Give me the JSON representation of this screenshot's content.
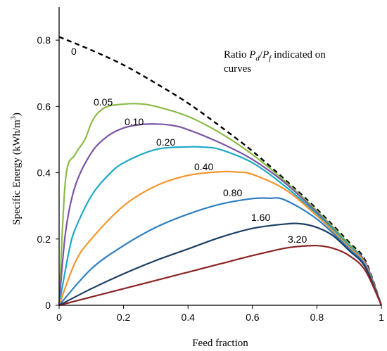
{
  "chart_data": {
    "type": "line",
    "xlabel": "Feed fraction",
    "ylabel_main": "Specific  Energy  (kWh/m",
    "ylabel_sup": "3",
    "ylabel_close": ")",
    "xlim": [
      0,
      1
    ],
    "ylim": [
      0,
      0.9
    ],
    "x_ticks": [
      0,
      0.2,
      0.4,
      0.6,
      0.8,
      1
    ],
    "x_tick_labels": [
      "0",
      "0.2",
      "0.4",
      "0.6",
      "0.8",
      "1"
    ],
    "y_ticks": [
      0,
      0.2,
      0.4,
      0.6,
      0.8
    ],
    "y_tick_labels": [
      "0",
      "0.2",
      "0.4",
      "0.6",
      "0.8"
    ],
    "grid": false,
    "annotation": {
      "prefix": "Ratio ",
      "p1": "P",
      "s1": "d",
      "slash": "/",
      "p2": "P",
      "s2": "f",
      "suffix": " indicated on",
      "line2": "curves"
    },
    "series": [
      {
        "name": "0",
        "label": "0",
        "color": "#000000",
        "dash": true,
        "x": [
          0,
          0.1,
          0.2,
          0.3,
          0.4,
          0.5,
          0.6,
          0.7,
          0.8,
          0.9,
          0.95,
          1.0
        ],
        "y": [
          0.81,
          0.77,
          0.725,
          0.67,
          0.61,
          0.54,
          0.465,
          0.38,
          0.29,
          0.19,
          0.135,
          0.0
        ]
      },
      {
        "name": "0.05",
        "label": "0.05",
        "color": "#8dbb4a",
        "dash": false,
        "x": [
          0,
          0.02,
          0.05,
          0.08,
          0.1,
          0.12,
          0.15,
          0.2,
          0.25,
          0.3,
          0.4,
          0.5,
          0.6,
          0.7,
          0.8,
          0.9,
          0.95,
          1.0
        ],
        "y": [
          0,
          0.38,
          0.455,
          0.5,
          0.55,
          0.58,
          0.6,
          0.607,
          0.608,
          0.6,
          0.57,
          0.52,
          0.455,
          0.375,
          0.285,
          0.185,
          0.13,
          0.0
        ]
      },
      {
        "name": "0.10",
        "label": "0.10",
        "color": "#7b56a6",
        "dash": false,
        "x": [
          0,
          0.02,
          0.05,
          0.1,
          0.15,
          0.2,
          0.25,
          0.3,
          0.35,
          0.4,
          0.5,
          0.6,
          0.7,
          0.8,
          0.9,
          0.95,
          1.0
        ],
        "y": [
          0,
          0.22,
          0.36,
          0.46,
          0.51,
          0.535,
          0.545,
          0.547,
          0.543,
          0.53,
          0.49,
          0.44,
          0.37,
          0.28,
          0.18,
          0.13,
          0.0
        ]
      },
      {
        "name": "0.20",
        "label": "0.20",
        "color": "#1da9c5",
        "dash": false,
        "x": [
          0,
          0.03,
          0.05,
          0.1,
          0.15,
          0.2,
          0.3,
          0.4,
          0.45,
          0.5,
          0.6,
          0.7,
          0.8,
          0.9,
          0.95,
          1.0
        ],
        "y": [
          0,
          0.16,
          0.23,
          0.33,
          0.39,
          0.43,
          0.47,
          0.478,
          0.477,
          0.47,
          0.43,
          0.36,
          0.275,
          0.18,
          0.125,
          0.0
        ]
      },
      {
        "name": "0.40",
        "label": "0.40",
        "color": "#f4962e",
        "dash": false,
        "x": [
          0,
          0.05,
          0.1,
          0.2,
          0.3,
          0.4,
          0.5,
          0.55,
          0.6,
          0.7,
          0.8,
          0.9,
          0.95,
          1.0
        ],
        "y": [
          0,
          0.13,
          0.2,
          0.3,
          0.36,
          0.392,
          0.403,
          0.402,
          0.395,
          0.35,
          0.27,
          0.175,
          0.125,
          0.0
        ]
      },
      {
        "name": "0.80",
        "label": "0.80",
        "color": "#2e7fc1",
        "dash": false,
        "x": [
          0,
          0.1,
          0.2,
          0.3,
          0.4,
          0.5,
          0.6,
          0.65,
          0.7,
          0.8,
          0.9,
          0.95,
          1.0
        ],
        "y": [
          0,
          0.11,
          0.18,
          0.235,
          0.275,
          0.305,
          0.322,
          0.323,
          0.318,
          0.26,
          0.17,
          0.12,
          0.0
        ]
      },
      {
        "name": "1.60",
        "label": "1.60",
        "color": "#1c3f65",
        "dash": false,
        "x": [
          0,
          0.1,
          0.2,
          0.3,
          0.4,
          0.5,
          0.6,
          0.7,
          0.75,
          0.8,
          0.85,
          0.9,
          0.95,
          1.0
        ],
        "y": [
          0,
          0.05,
          0.095,
          0.135,
          0.17,
          0.205,
          0.232,
          0.245,
          0.246,
          0.235,
          0.21,
          0.165,
          0.115,
          0.0
        ]
      },
      {
        "name": "3.20",
        "label": "3.20",
        "color": "#8b2424",
        "dash": false,
        "x": [
          0,
          0.1,
          0.2,
          0.3,
          0.4,
          0.5,
          0.6,
          0.7,
          0.75,
          0.8,
          0.85,
          0.9,
          0.95,
          1.0
        ],
        "y": [
          0,
          0.025,
          0.05,
          0.075,
          0.1,
          0.125,
          0.15,
          0.172,
          0.178,
          0.18,
          0.172,
          0.15,
          0.105,
          0.0
        ]
      }
    ]
  }
}
